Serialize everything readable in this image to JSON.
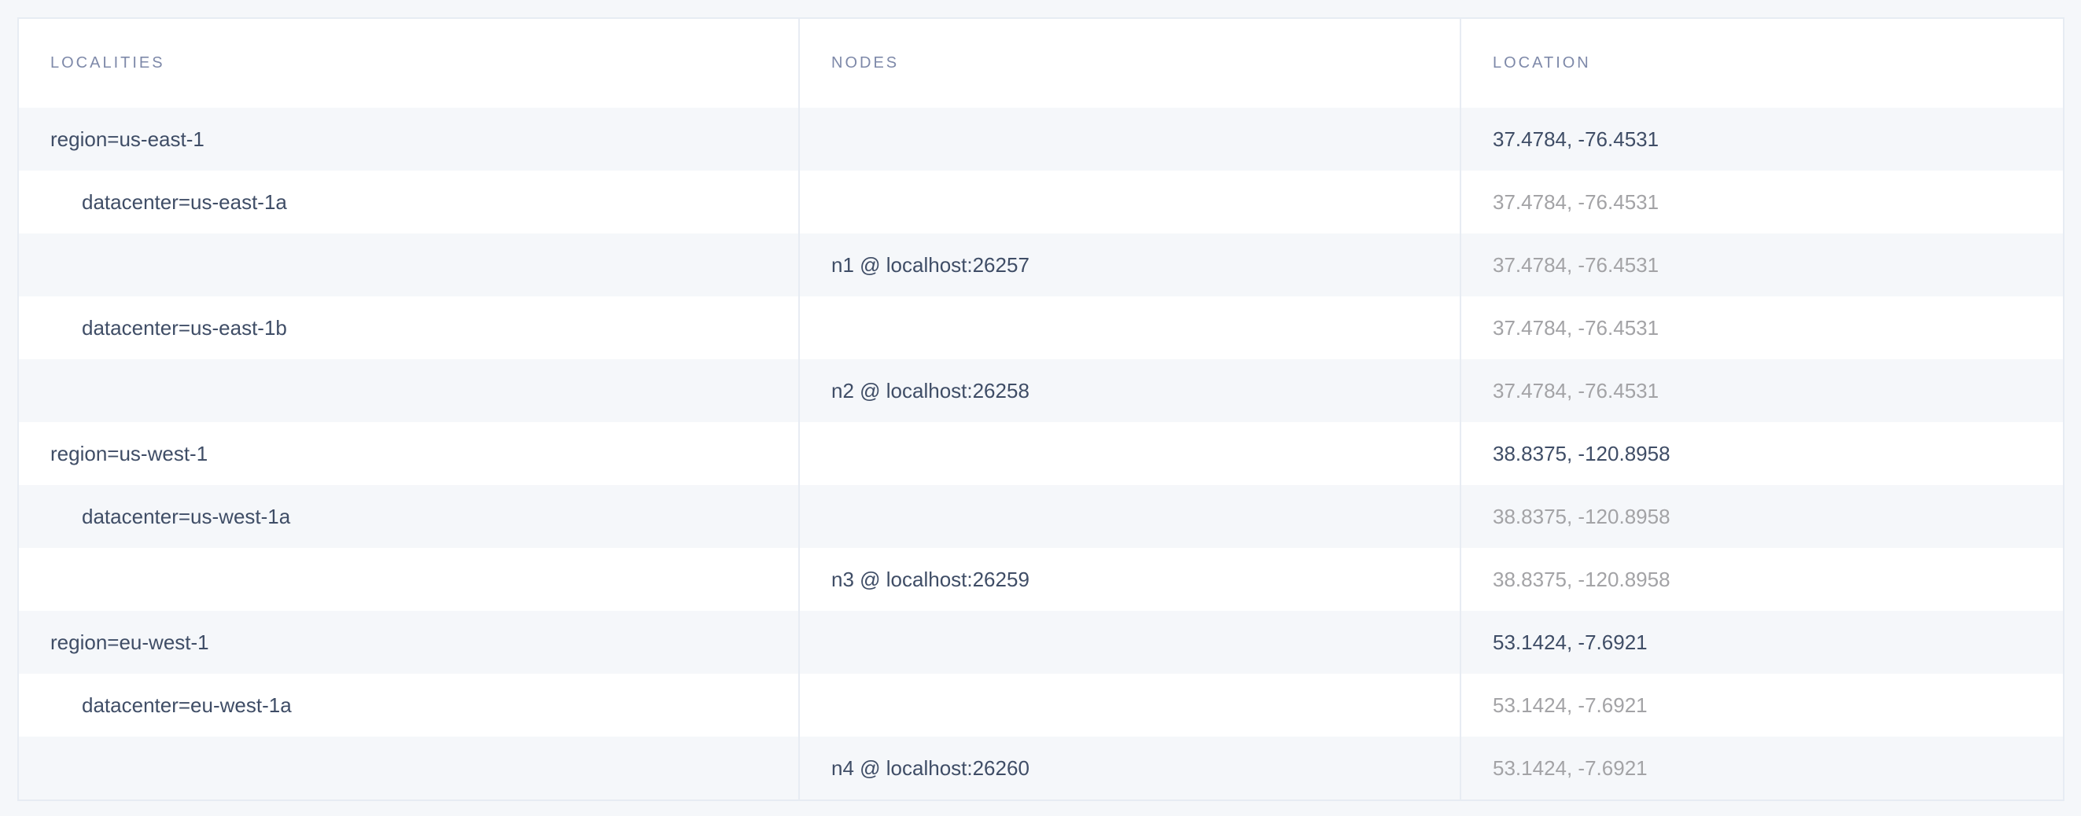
{
  "table": {
    "headers": [
      "LOCALITIES",
      "NODES",
      "LOCATION"
    ],
    "rows": [
      {
        "locality": "region=us-east-1",
        "node": "",
        "location": "37.4784, -76.4531",
        "level": 0
      },
      {
        "locality": "datacenter=us-east-1a",
        "node": "",
        "location": "37.4784, -76.4531",
        "level": 1
      },
      {
        "locality": "",
        "node": "n1 @ localhost:26257",
        "location": "37.4784, -76.4531",
        "level": 2
      },
      {
        "locality": "datacenter=us-east-1b",
        "node": "",
        "location": "37.4784, -76.4531",
        "level": 1
      },
      {
        "locality": "",
        "node": "n2 @ localhost:26258",
        "location": "37.4784, -76.4531",
        "level": 2
      },
      {
        "locality": "region=us-west-1",
        "node": "",
        "location": "38.8375, -120.8958",
        "level": 0
      },
      {
        "locality": "datacenter=us-west-1a",
        "node": "",
        "location": "38.8375, -120.8958",
        "level": 1
      },
      {
        "locality": "",
        "node": "n3 @ localhost:26259",
        "location": "38.8375, -120.8958",
        "level": 2
      },
      {
        "locality": "region=eu-west-1",
        "node": "",
        "location": "53.1424, -7.6921",
        "level": 0
      },
      {
        "locality": "datacenter=eu-west-1a",
        "node": "",
        "location": "53.1424, -7.6921",
        "level": 1
      },
      {
        "locality": "",
        "node": "n4 @ localhost:26260",
        "location": "53.1424, -7.6921",
        "level": 2
      }
    ]
  },
  "colors": {
    "text": "#3f4d66",
    "muted": "#a3a3a6",
    "header": "#7e89a9",
    "stripe": "#f5f7fa",
    "border": "#e7ecf3"
  }
}
